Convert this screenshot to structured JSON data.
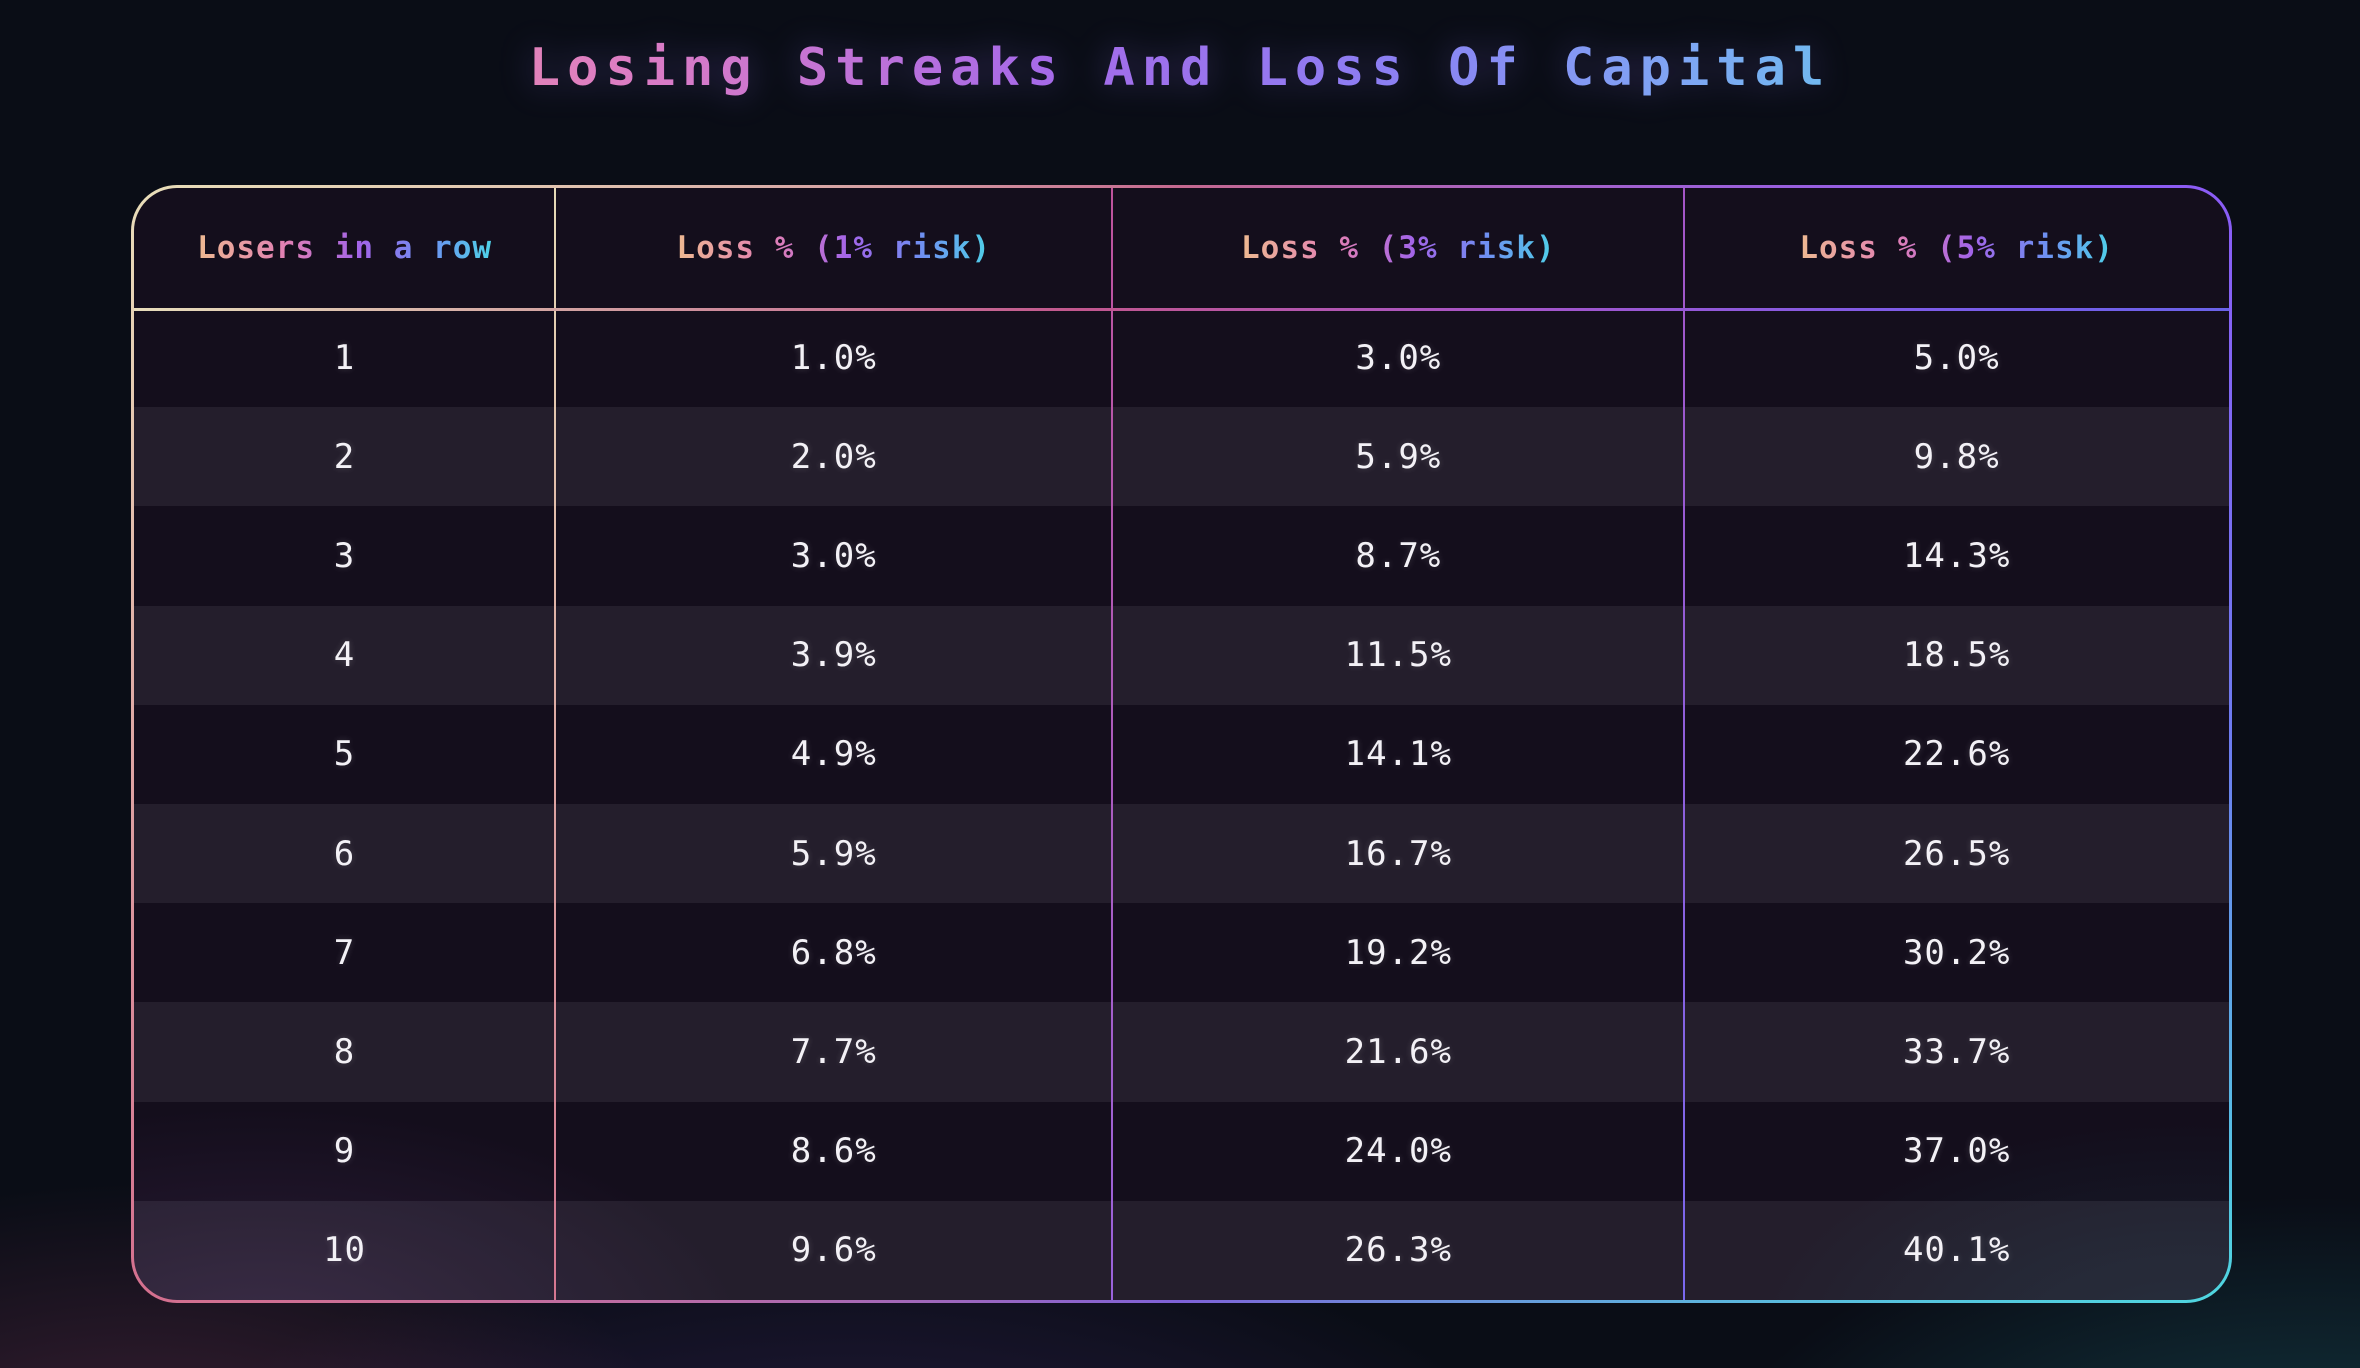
{
  "title": "Losing Streaks And Loss Of Capital",
  "table": {
    "columns": [
      "Losers in a row",
      "Loss % (1% risk)",
      "Loss % (3% risk)",
      "Loss % (5% risk)"
    ],
    "rows": [
      [
        "1",
        "1.0%",
        "3.0%",
        "5.0%"
      ],
      [
        "2",
        "2.0%",
        "5.9%",
        "9.8%"
      ],
      [
        "3",
        "3.0%",
        "8.7%",
        "14.3%"
      ],
      [
        "4",
        "3.9%",
        "11.5%",
        "18.5%"
      ],
      [
        "5",
        "4.9%",
        "14.1%",
        "22.6%"
      ],
      [
        "6",
        "5.9%",
        "16.7%",
        "26.5%"
      ],
      [
        "7",
        "6.8%",
        "19.2%",
        "30.2%"
      ],
      [
        "8",
        "7.7%",
        "21.6%",
        "33.7%"
      ],
      [
        "9",
        "8.6%",
        "24.0%",
        "37.0%"
      ],
      [
        "10",
        "9.6%",
        "26.3%",
        "40.1%"
      ]
    ]
  },
  "colors": {
    "background": "#0a0d16",
    "row_dark": "#140e1c",
    "row_light": "#272232",
    "accent_cream": "#e9ddb9",
    "accent_pink": "#d57690",
    "accent_magenta": "#c0539c",
    "accent_purple": "#8b5cf6",
    "accent_blue": "#6e7cf0",
    "accent_cyan": "#4fd6e0",
    "text": "#f3f1f6"
  },
  "chart_data": {
    "type": "table",
    "title": "Losing Streaks And Loss Of Capital",
    "columns": [
      "Losers in a row",
      "Loss % (1% risk)",
      "Loss % (3% risk)",
      "Loss % (5% risk)"
    ],
    "rows": [
      [
        1,
        1.0,
        3.0,
        5.0
      ],
      [
        2,
        2.0,
        5.9,
        9.8
      ],
      [
        3,
        3.0,
        8.7,
        14.3
      ],
      [
        4,
        3.9,
        11.5,
        18.5
      ],
      [
        5,
        4.9,
        14.1,
        22.6
      ],
      [
        6,
        5.9,
        16.7,
        26.5
      ],
      [
        7,
        6.8,
        19.2,
        30.2
      ],
      [
        8,
        7.7,
        21.6,
        33.7
      ],
      [
        9,
        8.6,
        24.0,
        37.0
      ],
      [
        10,
        9.6,
        26.3,
        40.1
      ]
    ],
    "value_unit": "%",
    "layout": {
      "striped_rows": true,
      "header_position": "top",
      "text_align": "center"
    }
  }
}
